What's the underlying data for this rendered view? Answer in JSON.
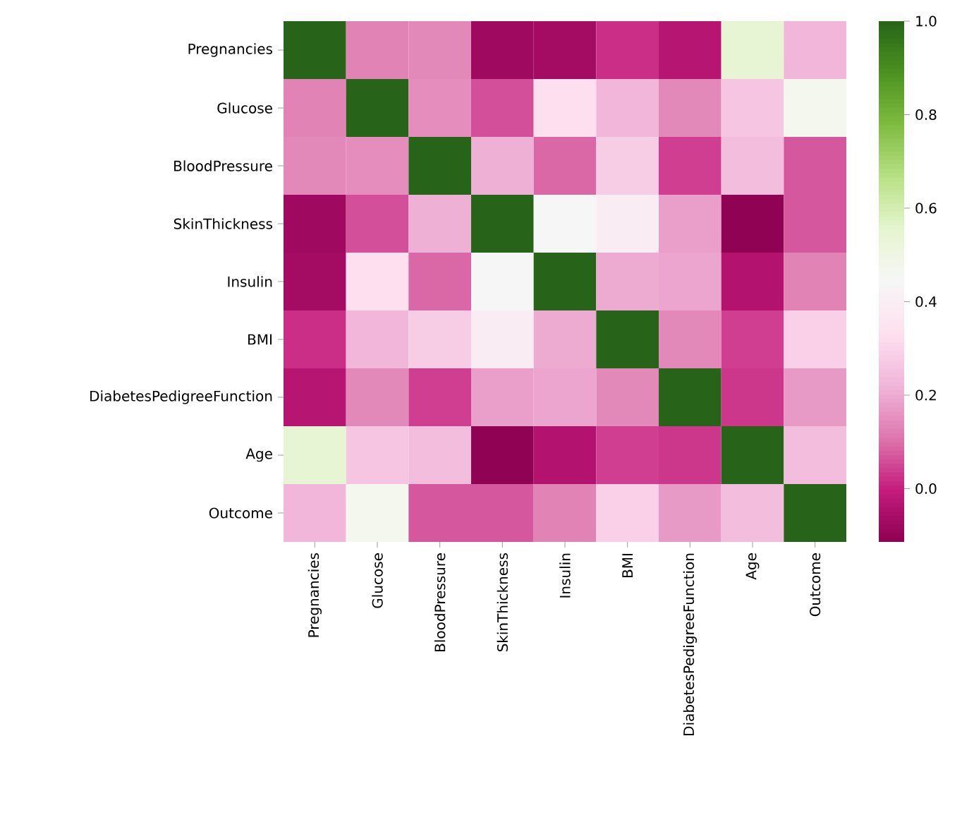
{
  "chart_data": {
    "type": "heatmap",
    "categories": [
      "Pregnancies",
      "Glucose",
      "BloodPressure",
      "SkinThickness",
      "Insulin",
      "BMI",
      "DiabetesPedigreeFunction",
      "Age",
      "Outcome"
    ],
    "y_categories": [
      "Pregnancies",
      "Glucose",
      "BloodPressure",
      "SkinThickness",
      "Insulin",
      "BMI",
      "DiabetesPedigreeFunction",
      "Age",
      "Outcome"
    ],
    "cells": [
      [
        1,
        0.13,
        0.14,
        -0.08,
        -0.07,
        0.02,
        -0.03,
        0.54,
        0.22
      ],
      [
        0.13,
        1,
        0.15,
        0.06,
        0.33,
        0.22,
        0.14,
        0.26,
        0.47
      ],
      [
        0.14,
        0.15,
        1,
        0.21,
        0.09,
        0.28,
        0.04,
        0.24,
        0.07
      ],
      [
        -0.08,
        0.06,
        0.21,
        1,
        0.44,
        0.39,
        0.18,
        -0.11,
        0.07
      ],
      [
        -0.07,
        0.33,
        0.09,
        0.44,
        1,
        0.2,
        0.19,
        -0.04,
        0.13
      ],
      [
        0.02,
        0.22,
        0.28,
        0.39,
        0.2,
        1,
        0.14,
        0.04,
        0.29
      ],
      [
        -0.03,
        0.14,
        0.04,
        0.18,
        0.19,
        0.14,
        1,
        0.03,
        0.17
      ],
      [
        0.54,
        0.26,
        0.24,
        -0.11,
        -0.04,
        0.04,
        0.03,
        1,
        0.24
      ],
      [
        0.22,
        0.47,
        0.07,
        0.07,
        0.13,
        0.29,
        0.17,
        0.24,
        1
      ]
    ],
    "clim": [
      -0.114,
      1
    ],
    "cticks": [
      {
        "value": 0,
        "label": "0.0"
      },
      {
        "value": 0.2,
        "label": "0.2"
      },
      {
        "value": 0.4,
        "label": "0.4"
      },
      {
        "value": 0.6,
        "label": "0.6"
      },
      {
        "value": 0.8,
        "label": "0.8"
      },
      {
        "value": 1,
        "label": "1.0"
      }
    ]
  }
}
